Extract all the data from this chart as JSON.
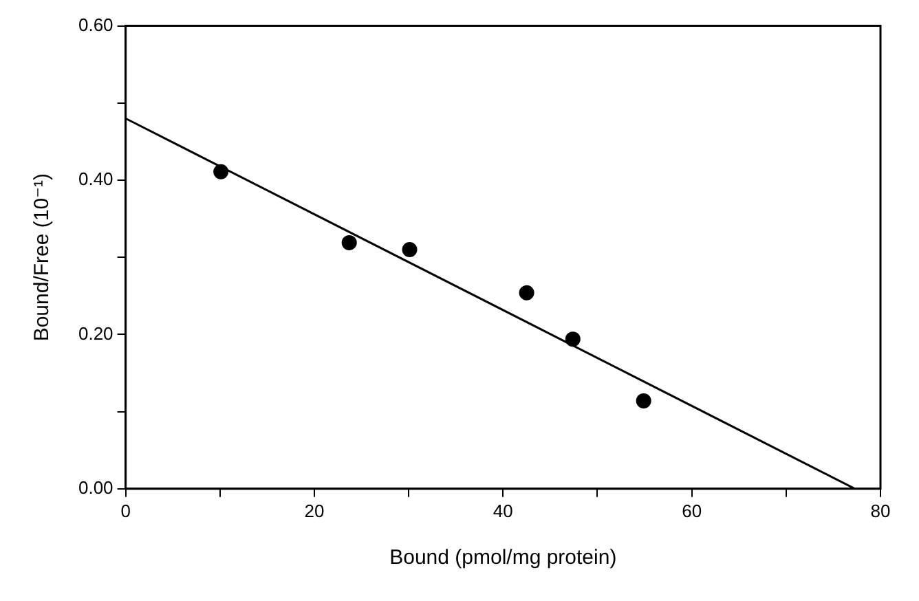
{
  "chart_data": {
    "type": "scatter",
    "xlabel": "Bound (pmol/mg protein)",
    "ylabel": "Bound/Free (10⁻¹)",
    "xlim": [
      0,
      80
    ],
    "xticks": [
      0,
      {
        "value": 10,
        "label": null
      },
      20,
      {
        "value": 30,
        "label": null
      },
      40,
      {
        "value": 50,
        "label": null
      },
      60,
      {
        "value": 70,
        "label": null
      },
      80
    ],
    "ylim": [
      0,
      0.6
    ],
    "yticks": [
      {
        "value": 0,
        "label": "0.00"
      },
      {
        "value": 0.1,
        "label": null
      },
      {
        "value": 0.2,
        "label": "0.20"
      },
      {
        "value": 0.3,
        "label": null
      },
      {
        "value": 0.4,
        "label": "0.40"
      },
      {
        "value": 0.5,
        "label": null
      },
      {
        "value": 0.6,
        "label": "0.60"
      }
    ],
    "grid": false,
    "legend": false,
    "series": [
      {
        "color": "#000000",
        "marker": "circle",
        "x": [
          10.1,
          23.7,
          30.1,
          42.5,
          47.4,
          54.9
        ],
        "values": [
          0.411,
          0.319,
          0.31,
          0.254,
          0.194,
          0.114
        ]
      },
      {
        "type": "line",
        "color": "#000000",
        "marker": "none",
        "line_style": "solid",
        "x": [
          0,
          77.3
        ],
        "values": [
          0.48,
          0
        ]
      }
    ]
  }
}
